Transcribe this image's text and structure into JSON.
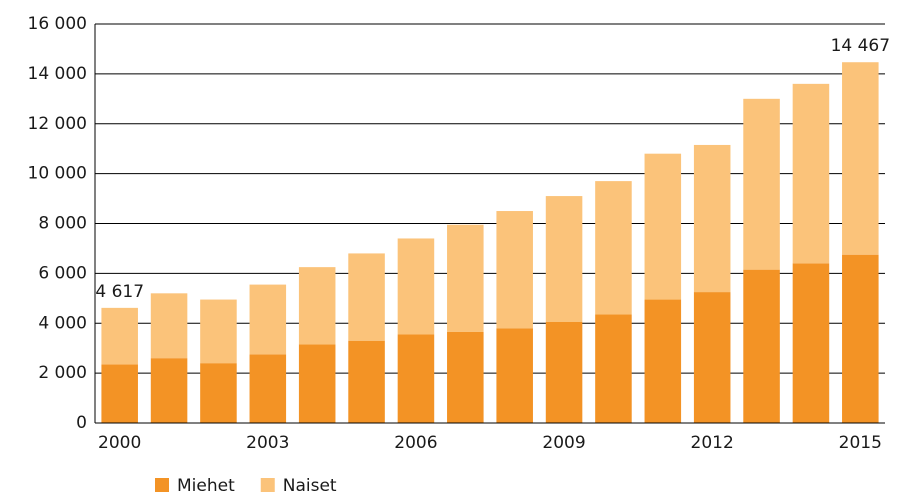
{
  "chart_data": {
    "type": "stacked-bar",
    "categories": [
      "2000",
      null,
      null,
      "2003",
      null,
      null,
      "2006",
      null,
      null,
      "2009",
      null,
      null,
      "2012",
      null,
      null,
      "2015"
    ],
    "series": [
      {
        "name": "Miehet",
        "color": "#f39325",
        "values": [
          2350,
          2600,
          2400,
          2750,
          3150,
          3300,
          3550,
          3650,
          3800,
          4050,
          4350,
          4950,
          5250,
          6150,
          6400,
          6750
        ]
      },
      {
        "name": "Naiset",
        "color": "#fbc37a",
        "values": [
          2267,
          2600,
          2550,
          2800,
          3100,
          3500,
          3850,
          4300,
          4700,
          5050,
          5350,
          5850,
          5900,
          6850,
          7200,
          7717
        ]
      }
    ],
    "annotations": [
      {
        "index": 0,
        "text": "4 617"
      },
      {
        "index": 15,
        "text": "14 467"
      }
    ],
    "ylim": [
      0,
      16000
    ],
    "yticks": [
      0,
      {
        "value": 2000,
        "label": "2 000"
      },
      {
        "value": 4000,
        "label": "4 000"
      },
      {
        "value": 6000,
        "label": "6 000"
      },
      {
        "value": 8000,
        "label": "8 000"
      },
      {
        "value": 10000,
        "label": "10 000"
      },
      {
        "value": 12000,
        "label": "12 000"
      },
      {
        "value": 14000,
        "label": "14 000"
      },
      {
        "value": 16000,
        "label": "16 000"
      }
    ],
    "grid": true,
    "legend": "bottom"
  }
}
